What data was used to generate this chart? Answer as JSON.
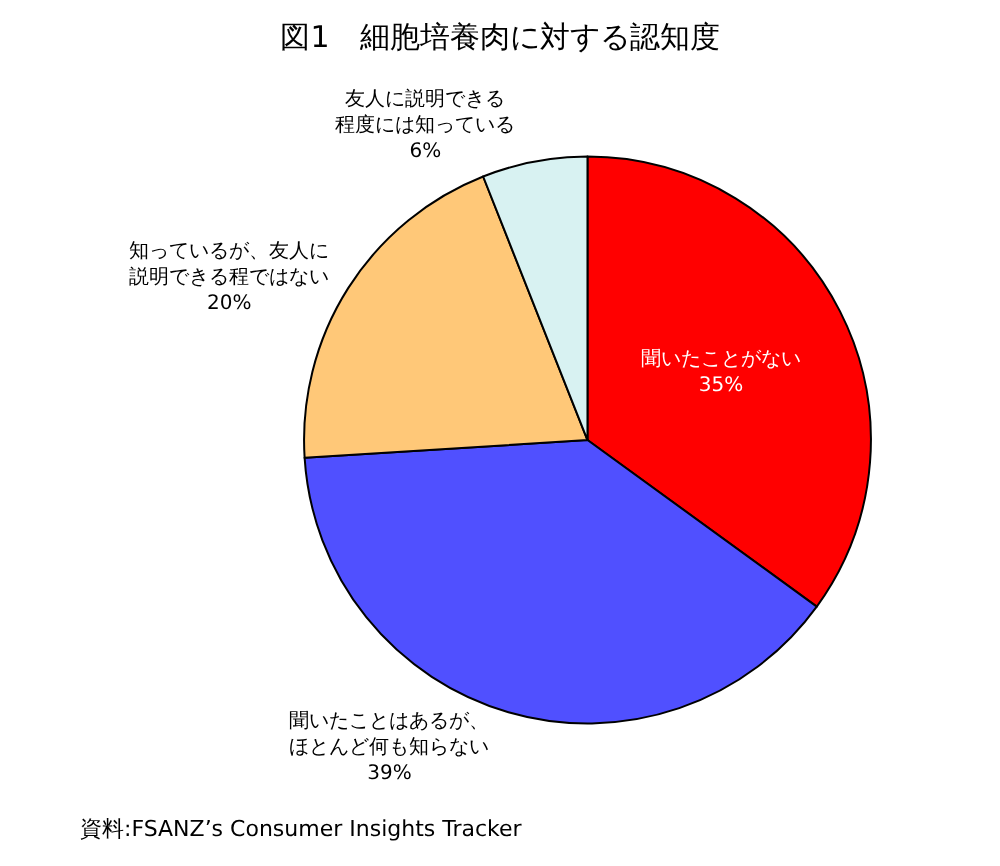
{
  "chart_data": {
    "type": "pie",
    "title": "図1　細胞培養肉に対する認知度",
    "categories": [
      "聞いたことがない",
      "聞いたことはあるが、ほとんど何も知らない",
      "知っているが、友人に説明できる程ではない",
      "友人に説明できる程度には知っている"
    ],
    "values": [
      35,
      39,
      20,
      6
    ],
    "colors": [
      "#ff0000",
      "#5050ff",
      "#ffc878",
      "#d8f2f2"
    ],
    "value_labels": [
      "35%",
      "39%",
      "20%",
      "6%"
    ],
    "legend": false,
    "annotations": [
      "資料:FSANZ’s Consumer Insights Tracker"
    ]
  }
}
